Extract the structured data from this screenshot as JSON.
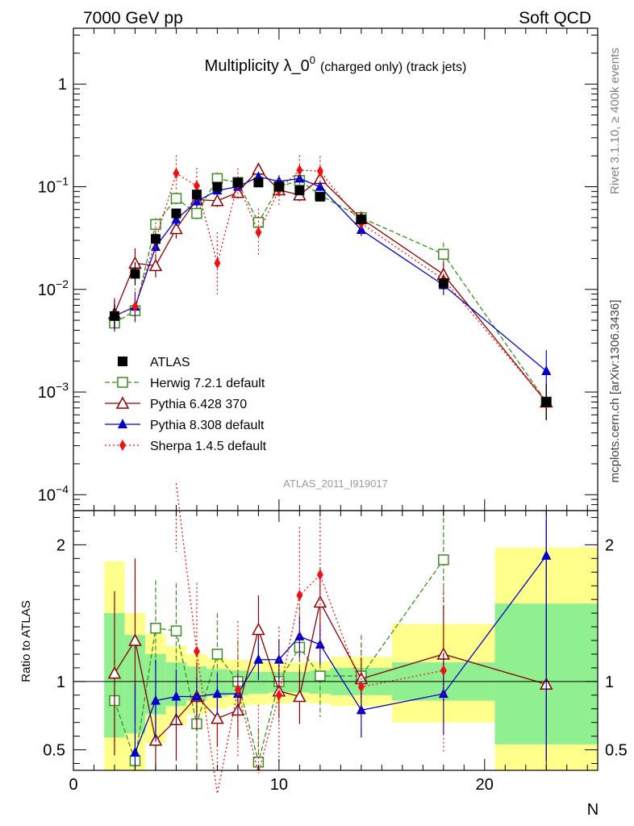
{
  "header": {
    "energy": "7000 GeV pp",
    "category": "Soft QCD"
  },
  "side_labels": {
    "rivet": "Rivet 3.1.10, ≥ 400k events",
    "source": "mcplots.cern.ch [arXiv:1306.3436]"
  },
  "chart_data": {
    "type": "line",
    "title": "Multiplicity λ_0",
    "title_sup": "0",
    "title_suffix": "(charged only) (track jets)",
    "analysis_id": "ATLAS_2011_I919017",
    "xlabel": "N",
    "ylabel_ratio": "Ratio to ATLAS",
    "xlim": [
      0,
      25.5
    ],
    "ylim_main": [
      7e-05,
      3.5
    ],
    "ylim_ratio": [
      0.35,
      2.25
    ],
    "y_scale_main": "log",
    "x_ticks": [
      "0",
      "10",
      "20"
    ],
    "x_tick_values": [
      0,
      10,
      20
    ],
    "y_ticks_main": [
      {
        "value": 1,
        "base": "1",
        "exp": ""
      },
      {
        "value": 0.1,
        "base": "10",
        "exp": "−1"
      },
      {
        "value": 0.01,
        "base": "10",
        "exp": "−2"
      },
      {
        "value": 0.001,
        "base": "10",
        "exp": "−3"
      },
      {
        "value": 0.0001,
        "base": "10",
        "exp": "−4"
      }
    ],
    "y_ticks_ratio": [
      {
        "value": 0.5,
        "label": "0.5"
      },
      {
        "value": 1,
        "label": "1"
      },
      {
        "value": 2,
        "label": "2"
      }
    ],
    "bands": [
      {
        "x0": 1.5,
        "x1": 2.5,
        "inner": [
          0.59,
          1.5
        ],
        "outer": [
          0.35,
          1.88
        ]
      },
      {
        "x0": 2.5,
        "x1": 3.5,
        "inner": [
          0.62,
          1.34
        ],
        "outer": [
          0.35,
          1.5
        ]
      },
      {
        "x0": 3.5,
        "x1": 4.5,
        "inner": [
          0.76,
          1.2
        ],
        "outer": [
          0.55,
          1.35
        ]
      },
      {
        "x0": 4.5,
        "x1": 5.5,
        "inner": [
          0.82,
          1.14
        ],
        "outer": [
          0.68,
          1.26
        ]
      },
      {
        "x0": 5.5,
        "x1": 6.5,
        "inner": [
          0.86,
          1.11
        ],
        "outer": [
          0.76,
          1.2
        ]
      },
      {
        "x0": 6.5,
        "x1": 7.5,
        "inner": [
          0.89,
          1.09
        ],
        "outer": [
          0.8,
          1.17
        ]
      },
      {
        "x0": 7.5,
        "x1": 8.5,
        "inner": [
          0.9,
          1.08
        ],
        "outer": [
          0.82,
          1.16
        ]
      },
      {
        "x0": 8.5,
        "x1": 9.5,
        "inner": [
          0.91,
          1.07
        ],
        "outer": [
          0.83,
          1.15
        ]
      },
      {
        "x0": 9.5,
        "x1": 10.5,
        "inner": [
          0.92,
          1.07
        ],
        "outer": [
          0.84,
          1.14
        ]
      },
      {
        "x0": 10.5,
        "x1": 11.5,
        "inner": [
          0.92,
          1.07
        ],
        "outer": [
          0.85,
          1.14
        ]
      },
      {
        "x0": 11.5,
        "x1": 12.5,
        "inner": [
          0.91,
          1.08
        ],
        "outer": [
          0.84,
          1.15
        ]
      },
      {
        "x0": 12.5,
        "x1": 15.5,
        "inner": [
          0.9,
          1.1
        ],
        "outer": [
          0.82,
          1.18
        ]
      },
      {
        "x0": 15.5,
        "x1": 20.5,
        "inner": [
          0.86,
          1.14
        ],
        "outer": [
          0.7,
          1.42
        ]
      },
      {
        "x0": 20.5,
        "x1": 25.5,
        "inner": [
          0.54,
          1.57
        ],
        "outer": [
          0.35,
          1.98
        ]
      }
    ],
    "x": [
      2,
      3,
      4,
      5,
      6,
      7,
      8,
      9,
      10,
      11,
      12,
      14,
      18,
      23
    ],
    "series": [
      {
        "name": "ATLAS",
        "color": "#000000",
        "marker": "square-filled",
        "line": "none",
        "values": [
          0.0055,
          0.0142,
          0.031,
          0.055,
          0.084,
          0.1,
          0.11,
          0.11,
          0.1,
          0.092,
          0.08,
          0.048,
          0.0115,
          0.0008
        ],
        "err": [
          0.3,
          0.3,
          0.15,
          0.1,
          0.08,
          0.07,
          0.06,
          0.06,
          0.06,
          0.06,
          0.07,
          0.1,
          0.15,
          0.5
        ],
        "ratio": [
          1,
          1,
          1,
          1,
          1,
          1,
          1,
          1,
          1,
          1,
          1,
          1,
          1,
          1
        ],
        "ratio_err": [
          0,
          0,
          0,
          0,
          0,
          0,
          0,
          0,
          0,
          0,
          0,
          0,
          0,
          0
        ]
      },
      {
        "name": "Herwig 7.2.1 default",
        "color": "#3a8f1f",
        "marker": "square-open",
        "line": "dashed",
        "values": [
          0.0047,
          0.0062,
          0.043,
          0.077,
          0.055,
          0.12,
          0.11,
          0.045,
          0.1,
          0.115,
          0.083,
          0.05,
          0.022,
          0.0008
        ],
        "err": [
          0.15,
          0.15,
          0.15,
          0.15,
          0.15,
          0.15,
          0.15,
          0.15,
          0.15,
          0.15,
          0.15,
          0.15,
          0.3,
          0.5
        ],
        "ratio": [
          0.86,
          0.42,
          1.39,
          1.37,
          0.69,
          1.2,
          1.0,
          0.41,
          1.0,
          1.25,
          1.04,
          1.04,
          1.89,
          null
        ],
        "ratio_err": [
          0.3,
          0.3,
          0.35,
          0.35,
          0.3,
          0.3,
          0.3,
          0.25,
          0.3,
          0.3,
          0.3,
          0.3,
          0.4,
          0
        ]
      },
      {
        "name": "Pythia 6.428 370",
        "color": "#8b0000",
        "marker": "triangle-open",
        "line": "solid",
        "values": [
          0.0058,
          0.018,
          0.017,
          0.039,
          0.075,
          0.073,
          0.088,
          0.148,
          0.093,
          0.083,
          0.12,
          0.049,
          0.014,
          0.0008
        ],
        "err": [
          0.4,
          0.4,
          0.3,
          0.25,
          0.2,
          0.15,
          0.15,
          0.15,
          0.15,
          0.15,
          0.15,
          0.15,
          0.3,
          0.5
        ],
        "ratio": [
          1.06,
          1.3,
          0.57,
          0.72,
          0.89,
          0.73,
          0.79,
          1.38,
          0.93,
          0.89,
          1.58,
          1.02,
          1.2,
          0.98
        ],
        "ratio_err": [
          0.6,
          0.6,
          0.35,
          0.3,
          0.25,
          0.2,
          0.2,
          0.25,
          0.2,
          0.2,
          0.25,
          0.15,
          0.35,
          1.2
        ]
      },
      {
        "name": "Pythia 8.308 default",
        "color": "#0000cc",
        "marker": "triangle-filled",
        "line": "solid",
        "values": [
          0.0055,
          0.0068,
          0.026,
          0.048,
          0.072,
          0.092,
          0.1,
          0.125,
          0.113,
          0.12,
          0.1,
          0.038,
          0.011,
          0.0016
        ],
        "err": [
          0.4,
          0.4,
          0.15,
          0.15,
          0.1,
          0.1,
          0.1,
          0.1,
          0.1,
          0.1,
          0.1,
          0.15,
          0.25,
          0.6
        ],
        "ratio": [
          null,
          0.48,
          0.86,
          0.89,
          0.89,
          0.91,
          0.91,
          1.16,
          1.16,
          1.33,
          1.27,
          0.79,
          0.91,
          1.92
        ],
        "ratio_err": [
          0,
          0.5,
          0.3,
          0.2,
          0.15,
          0.15,
          0.15,
          0.15,
          0.15,
          0.15,
          0.15,
          0.2,
          0.3,
          1.5
        ]
      },
      {
        "name": "Sherpa 1.4.5 default",
        "color": "#ee1111",
        "marker": "diamond-filled",
        "line": "dotted",
        "values": [
          0.0055,
          0.0068,
          0.03,
          0.135,
          0.102,
          0.018,
          0.108,
          0.036,
          0.093,
          0.145,
          0.142,
          0.044,
          0.0125,
          0.0008
        ],
        "err": [
          0.5,
          0.5,
          0.5,
          0.5,
          0.5,
          1.0,
          0.4,
          0.7,
          0.4,
          0.4,
          0.4,
          0.3,
          0.5,
          0.5
        ],
        "ratio": [
          null,
          null,
          null,
          2.45,
          1.22,
          0.18,
          0.94,
          0.33,
          0.9,
          1.63,
          1.78,
          0.96,
          1.08,
          null
        ],
        "ratio_err": [
          0,
          0,
          0,
          0.5,
          0.5,
          0.5,
          0.5,
          0.5,
          0.5,
          0.5,
          0.6,
          0.3,
          0.6,
          0
        ]
      }
    ]
  }
}
